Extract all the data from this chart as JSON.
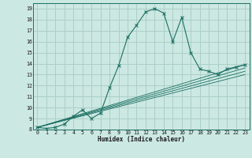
{
  "xlabel": "Humidex (Indice chaleur)",
  "background_color": "#cce8e2",
  "grid_color": "#aacfc8",
  "line_color": "#1a6e62",
  "xlim": [
    -0.5,
    23.5
  ],
  "ylim": [
    8,
    19.5
  ],
  "xticks": [
    0,
    1,
    2,
    3,
    4,
    5,
    6,
    7,
    8,
    9,
    10,
    11,
    12,
    13,
    14,
    15,
    16,
    17,
    18,
    19,
    20,
    21,
    22,
    23
  ],
  "yticks": [
    8,
    9,
    10,
    11,
    12,
    13,
    14,
    15,
    16,
    17,
    18,
    19
  ],
  "main_x": [
    0,
    1,
    2,
    3,
    4,
    5,
    6,
    7,
    8,
    9,
    10,
    11,
    12,
    13,
    14,
    15,
    16,
    17,
    18,
    19,
    20,
    21,
    22,
    23
  ],
  "main_y": [
    8.2,
    8.1,
    8.2,
    8.5,
    9.2,
    9.8,
    9.0,
    9.5,
    11.8,
    13.8,
    16.4,
    17.5,
    18.7,
    19.0,
    18.6,
    16.0,
    18.2,
    15.0,
    13.5,
    13.3,
    13.0,
    13.5,
    13.7,
    13.9
  ],
  "ref_lines": [
    [
      8.2,
      13.9
    ],
    [
      8.2,
      13.6
    ],
    [
      8.2,
      13.3
    ],
    [
      8.2,
      13.0
    ]
  ]
}
